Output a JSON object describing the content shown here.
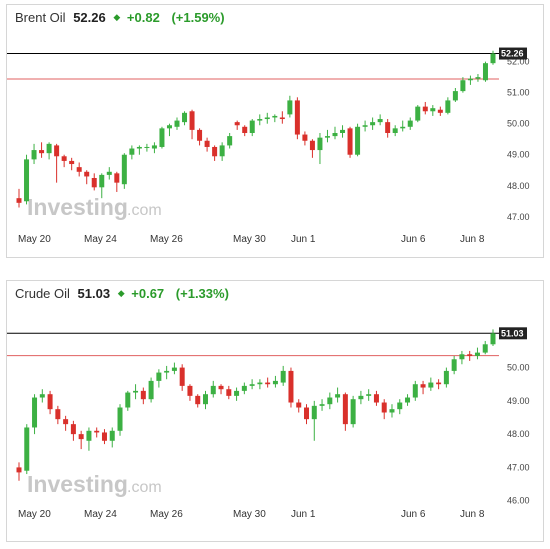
{
  "watermark": {
    "brand": "Investing",
    "suffix": ".com"
  },
  "colors": {
    "up": "#3cb043",
    "down": "#d9302b",
    "line": "#000000",
    "ref": "#e06060",
    "grid": "#eeeeee",
    "change": "#2b9b2b"
  },
  "panels": [
    {
      "name": "Brent Oil",
      "price": "52.26",
      "change": "+0.82",
      "change_pct": "(+1.59%)",
      "last_tag": "52.26",
      "y_ticks": [
        "52.00",
        "51.00",
        "50.00",
        "49.00",
        "48.00",
        "47.00"
      ]
    },
    {
      "name": "Crude Oil",
      "price": "51.03",
      "change": "+0.67",
      "change_pct": "(+1.33%)",
      "last_tag": "51.03",
      "y_ticks": [
        "50.00",
        "49.00",
        "48.00",
        "47.00",
        "46.00"
      ]
    }
  ],
  "chart_data": [
    {
      "type": "candlestick",
      "title": "Brent Oil",
      "x_labels": [
        "May 20",
        "May 24",
        "May 26",
        "May 30",
        "Jun 1",
        "Jun 6",
        "Jun 8"
      ],
      "y_ticks": [
        52.0,
        51.0,
        50.0,
        49.0,
        48.0,
        47.0
      ],
      "ylim": [
        46.8,
        52.6
      ],
      "last_price": 52.26,
      "reference_level": 51.44,
      "grid": false,
      "candles": [
        {
          "o": 47.6,
          "c": 47.45,
          "h": 47.9,
          "l": 47.3
        },
        {
          "o": 47.5,
          "c": 48.85,
          "h": 49.0,
          "l": 47.4
        },
        {
          "o": 48.85,
          "c": 49.15,
          "h": 49.35,
          "l": 48.7
        },
        {
          "o": 49.15,
          "c": 49.05,
          "h": 49.4,
          "l": 48.9
        },
        {
          "o": 49.05,
          "c": 49.35,
          "h": 49.4,
          "l": 48.85
        },
        {
          "o": 49.3,
          "c": 48.95,
          "h": 49.35,
          "l": 48.1
        },
        {
          "o": 48.95,
          "c": 48.8,
          "h": 49.0,
          "l": 48.6
        },
        {
          "o": 48.8,
          "c": 48.7,
          "h": 48.9,
          "l": 48.5
        },
        {
          "o": 48.6,
          "c": 48.45,
          "h": 48.75,
          "l": 48.3
        },
        {
          "o": 48.45,
          "c": 48.3,
          "h": 48.5,
          "l": 48.05
        },
        {
          "o": 48.25,
          "c": 47.95,
          "h": 48.4,
          "l": 47.85
        },
        {
          "o": 47.95,
          "c": 48.35,
          "h": 48.4,
          "l": 47.6
        },
        {
          "o": 48.35,
          "c": 48.45,
          "h": 48.6,
          "l": 48.2
        },
        {
          "o": 48.4,
          "c": 48.1,
          "h": 48.45,
          "l": 47.8
        },
        {
          "o": 48.05,
          "c": 49.0,
          "h": 49.05,
          "l": 47.9
        },
        {
          "o": 49.0,
          "c": 49.2,
          "h": 49.3,
          "l": 48.85
        },
        {
          "o": 49.2,
          "c": 49.25,
          "h": 49.3,
          "l": 49.0
        },
        {
          "o": 49.25,
          "c": 49.25,
          "h": 49.35,
          "l": 49.1
        },
        {
          "o": 49.2,
          "c": 49.3,
          "h": 49.4,
          "l": 49.05
        },
        {
          "o": 49.25,
          "c": 49.85,
          "h": 49.9,
          "l": 49.2
        },
        {
          "o": 49.85,
          "c": 49.95,
          "h": 50.0,
          "l": 49.6
        },
        {
          "o": 49.9,
          "c": 50.1,
          "h": 50.2,
          "l": 49.8
        },
        {
          "o": 50.05,
          "c": 50.35,
          "h": 50.4,
          "l": 49.95
        },
        {
          "o": 50.4,
          "c": 49.8,
          "h": 50.45,
          "l": 49.5
        },
        {
          "o": 49.8,
          "c": 49.45,
          "h": 49.85,
          "l": 49.3
        },
        {
          "o": 49.45,
          "c": 49.25,
          "h": 49.55,
          "l": 49.1
        },
        {
          "o": 49.25,
          "c": 48.95,
          "h": 49.3,
          "l": 48.8
        },
        {
          "o": 48.95,
          "c": 49.3,
          "h": 49.4,
          "l": 48.8
        },
        {
          "o": 49.3,
          "c": 49.6,
          "h": 49.7,
          "l": 49.2
        },
        {
          "o": 50.05,
          "c": 49.95,
          "h": 50.1,
          "l": 49.8
        },
        {
          "o": 49.9,
          "c": 49.7,
          "h": 49.95,
          "l": 49.6
        },
        {
          "o": 49.7,
          "c": 50.1,
          "h": 50.15,
          "l": 49.6
        },
        {
          "o": 50.1,
          "c": 50.15,
          "h": 50.3,
          "l": 49.95
        },
        {
          "o": 50.15,
          "c": 50.2,
          "h": 50.35,
          "l": 50.0
        },
        {
          "o": 50.2,
          "c": 50.25,
          "h": 50.3,
          "l": 50.05
        },
        {
          "o": 50.2,
          "c": 50.15,
          "h": 50.4,
          "l": 50.0
        },
        {
          "o": 50.3,
          "c": 50.75,
          "h": 50.9,
          "l": 50.2
        },
        {
          "o": 50.75,
          "c": 49.65,
          "h": 50.85,
          "l": 49.5
        },
        {
          "o": 49.65,
          "c": 49.45,
          "h": 49.75,
          "l": 49.3
        },
        {
          "o": 49.45,
          "c": 49.15,
          "h": 49.5,
          "l": 48.9
        },
        {
          "o": 49.15,
          "c": 49.55,
          "h": 49.7,
          "l": 48.7
        },
        {
          "o": 49.55,
          "c": 49.6,
          "h": 49.8,
          "l": 49.4
        },
        {
          "o": 49.6,
          "c": 49.7,
          "h": 49.9,
          "l": 49.5
        },
        {
          "o": 49.7,
          "c": 49.8,
          "h": 49.95,
          "l": 49.55
        },
        {
          "o": 49.85,
          "c": 49.0,
          "h": 49.9,
          "l": 48.9
        },
        {
          "o": 49.0,
          "c": 49.9,
          "h": 50.0,
          "l": 48.95
        },
        {
          "o": 49.9,
          "c": 49.95,
          "h": 50.1,
          "l": 49.75
        },
        {
          "o": 49.95,
          "c": 50.05,
          "h": 50.2,
          "l": 49.8
        },
        {
          "o": 50.05,
          "c": 50.15,
          "h": 50.3,
          "l": 49.95
        },
        {
          "o": 50.05,
          "c": 49.7,
          "h": 50.15,
          "l": 49.55
        },
        {
          "o": 49.7,
          "c": 49.85,
          "h": 49.95,
          "l": 49.6
        },
        {
          "o": 49.85,
          "c": 49.9,
          "h": 50.1,
          "l": 49.75
        },
        {
          "o": 49.9,
          "c": 50.1,
          "h": 50.2,
          "l": 49.8
        },
        {
          "o": 50.1,
          "c": 50.55,
          "h": 50.6,
          "l": 50.05
        },
        {
          "o": 50.55,
          "c": 50.4,
          "h": 50.7,
          "l": 50.3
        },
        {
          "o": 50.4,
          "c": 50.5,
          "h": 50.6,
          "l": 50.25
        },
        {
          "o": 50.45,
          "c": 50.35,
          "h": 50.55,
          "l": 50.25
        },
        {
          "o": 50.35,
          "c": 50.75,
          "h": 50.85,
          "l": 50.3
        },
        {
          "o": 50.75,
          "c": 51.05,
          "h": 51.15,
          "l": 50.7
        },
        {
          "o": 51.05,
          "c": 51.4,
          "h": 51.5,
          "l": 51.0
        },
        {
          "o": 51.4,
          "c": 51.45,
          "h": 51.55,
          "l": 51.25
        },
        {
          "o": 51.45,
          "c": 51.5,
          "h": 51.6,
          "l": 51.35
        },
        {
          "o": 51.4,
          "c": 51.95,
          "h": 52.0,
          "l": 51.35
        },
        {
          "o": 51.95,
          "c": 52.26,
          "h": 52.35,
          "l": 51.9
        }
      ]
    },
    {
      "type": "candlestick",
      "title": "Crude Oil",
      "x_labels": [
        "May 20",
        "May 24",
        "May 26",
        "May 30",
        "Jun 1",
        "Jun 6",
        "Jun 8"
      ],
      "y_ticks": [
        50.0,
        49.0,
        48.0,
        47.0,
        46.0
      ],
      "ylim": [
        45.9,
        51.4
      ],
      "last_price": 51.03,
      "reference_level": 50.36,
      "grid": false,
      "candles": [
        {
          "o": 47.0,
          "c": 46.85,
          "h": 47.15,
          "l": 46.6
        },
        {
          "o": 46.9,
          "c": 48.2,
          "h": 48.3,
          "l": 46.8
        },
        {
          "o": 48.2,
          "c": 49.1,
          "h": 49.2,
          "l": 48.0
        },
        {
          "o": 49.1,
          "c": 49.2,
          "h": 49.35,
          "l": 48.95
        },
        {
          "o": 49.2,
          "c": 48.75,
          "h": 49.3,
          "l": 48.6
        },
        {
          "o": 48.75,
          "c": 48.45,
          "h": 48.85,
          "l": 48.3
        },
        {
          "o": 48.45,
          "c": 48.3,
          "h": 48.55,
          "l": 48.1
        },
        {
          "o": 48.3,
          "c": 48.0,
          "h": 48.4,
          "l": 47.8
        },
        {
          "o": 48.0,
          "c": 47.85,
          "h": 48.1,
          "l": 47.55
        },
        {
          "o": 47.8,
          "c": 48.1,
          "h": 48.2,
          "l": 47.5
        },
        {
          "o": 48.1,
          "c": 48.05,
          "h": 48.2,
          "l": 47.9
        },
        {
          "o": 48.05,
          "c": 47.8,
          "h": 48.15,
          "l": 47.7
        },
        {
          "o": 47.8,
          "c": 48.1,
          "h": 48.2,
          "l": 47.6
        },
        {
          "o": 48.1,
          "c": 48.8,
          "h": 48.9,
          "l": 47.95
        },
        {
          "o": 48.8,
          "c": 49.25,
          "h": 49.3,
          "l": 48.7
        },
        {
          "o": 49.25,
          "c": 49.3,
          "h": 49.5,
          "l": 49.05
        },
        {
          "o": 49.3,
          "c": 49.05,
          "h": 49.4,
          "l": 48.9
        },
        {
          "o": 49.05,
          "c": 49.6,
          "h": 49.7,
          "l": 48.95
        },
        {
          "o": 49.6,
          "c": 49.85,
          "h": 49.95,
          "l": 49.4
        },
        {
          "o": 49.85,
          "c": 49.9,
          "h": 50.05,
          "l": 49.65
        },
        {
          "o": 49.9,
          "c": 50.0,
          "h": 50.15,
          "l": 49.8
        },
        {
          "o": 50.0,
          "c": 49.45,
          "h": 50.1,
          "l": 49.3
        },
        {
          "o": 49.45,
          "c": 49.15,
          "h": 49.5,
          "l": 49.0
        },
        {
          "o": 49.15,
          "c": 48.9,
          "h": 49.2,
          "l": 48.8
        },
        {
          "o": 48.9,
          "c": 49.2,
          "h": 49.3,
          "l": 48.75
        },
        {
          "o": 49.2,
          "c": 49.45,
          "h": 49.6,
          "l": 49.1
        },
        {
          "o": 49.45,
          "c": 49.35,
          "h": 49.5,
          "l": 49.2
        },
        {
          "o": 49.35,
          "c": 49.15,
          "h": 49.45,
          "l": 49.05
        },
        {
          "o": 49.15,
          "c": 49.3,
          "h": 49.4,
          "l": 49.0
        },
        {
          "o": 49.3,
          "c": 49.45,
          "h": 49.55,
          "l": 49.2
        },
        {
          "o": 49.45,
          "c": 49.5,
          "h": 49.65,
          "l": 49.35
        },
        {
          "o": 49.5,
          "c": 49.55,
          "h": 49.65,
          "l": 49.35
        },
        {
          "o": 49.55,
          "c": 49.5,
          "h": 49.7,
          "l": 49.4
        },
        {
          "o": 49.5,
          "c": 49.6,
          "h": 49.75,
          "l": 49.4
        },
        {
          "o": 49.55,
          "c": 49.9,
          "h": 50.05,
          "l": 49.45
        },
        {
          "o": 49.9,
          "c": 48.95,
          "h": 50.0,
          "l": 48.8
        },
        {
          "o": 48.95,
          "c": 48.8,
          "h": 49.05,
          "l": 48.65
        },
        {
          "o": 48.8,
          "c": 48.45,
          "h": 48.9,
          "l": 48.3
        },
        {
          "o": 48.45,
          "c": 48.85,
          "h": 49.0,
          "l": 47.8
        },
        {
          "o": 48.85,
          "c": 48.9,
          "h": 49.05,
          "l": 48.7
        },
        {
          "o": 48.9,
          "c": 49.1,
          "h": 49.25,
          "l": 48.75
        },
        {
          "o": 49.1,
          "c": 49.2,
          "h": 49.4,
          "l": 48.95
        },
        {
          "o": 49.2,
          "c": 48.3,
          "h": 49.25,
          "l": 48.1
        },
        {
          "o": 48.3,
          "c": 49.05,
          "h": 49.15,
          "l": 48.2
        },
        {
          "o": 49.05,
          "c": 49.15,
          "h": 49.3,
          "l": 48.9
        },
        {
          "o": 49.15,
          "c": 49.2,
          "h": 49.35,
          "l": 49.0
        },
        {
          "o": 49.2,
          "c": 48.95,
          "h": 49.3,
          "l": 48.85
        },
        {
          "o": 48.95,
          "c": 48.65,
          "h": 49.05,
          "l": 48.45
        },
        {
          "o": 48.65,
          "c": 48.75,
          "h": 48.9,
          "l": 48.5
        },
        {
          "o": 48.75,
          "c": 48.95,
          "h": 49.05,
          "l": 48.6
        },
        {
          "o": 48.95,
          "c": 49.1,
          "h": 49.2,
          "l": 48.85
        },
        {
          "o": 49.1,
          "c": 49.5,
          "h": 49.6,
          "l": 49.0
        },
        {
          "o": 49.5,
          "c": 49.4,
          "h": 49.6,
          "l": 49.2
        },
        {
          "o": 49.4,
          "c": 49.55,
          "h": 49.7,
          "l": 49.3
        },
        {
          "o": 49.55,
          "c": 49.5,
          "h": 49.65,
          "l": 49.35
        },
        {
          "o": 49.5,
          "c": 49.9,
          "h": 50.0,
          "l": 49.4
        },
        {
          "o": 49.9,
          "c": 50.25,
          "h": 50.35,
          "l": 49.8
        },
        {
          "o": 50.25,
          "c": 50.4,
          "h": 50.5,
          "l": 50.1
        },
        {
          "o": 50.4,
          "c": 50.35,
          "h": 50.5,
          "l": 50.2
        },
        {
          "o": 50.35,
          "c": 50.45,
          "h": 50.6,
          "l": 50.25
        },
        {
          "o": 50.45,
          "c": 50.7,
          "h": 50.8,
          "l": 50.4
        },
        {
          "o": 50.7,
          "c": 51.03,
          "h": 51.15,
          "l": 50.65
        }
      ]
    }
  ]
}
